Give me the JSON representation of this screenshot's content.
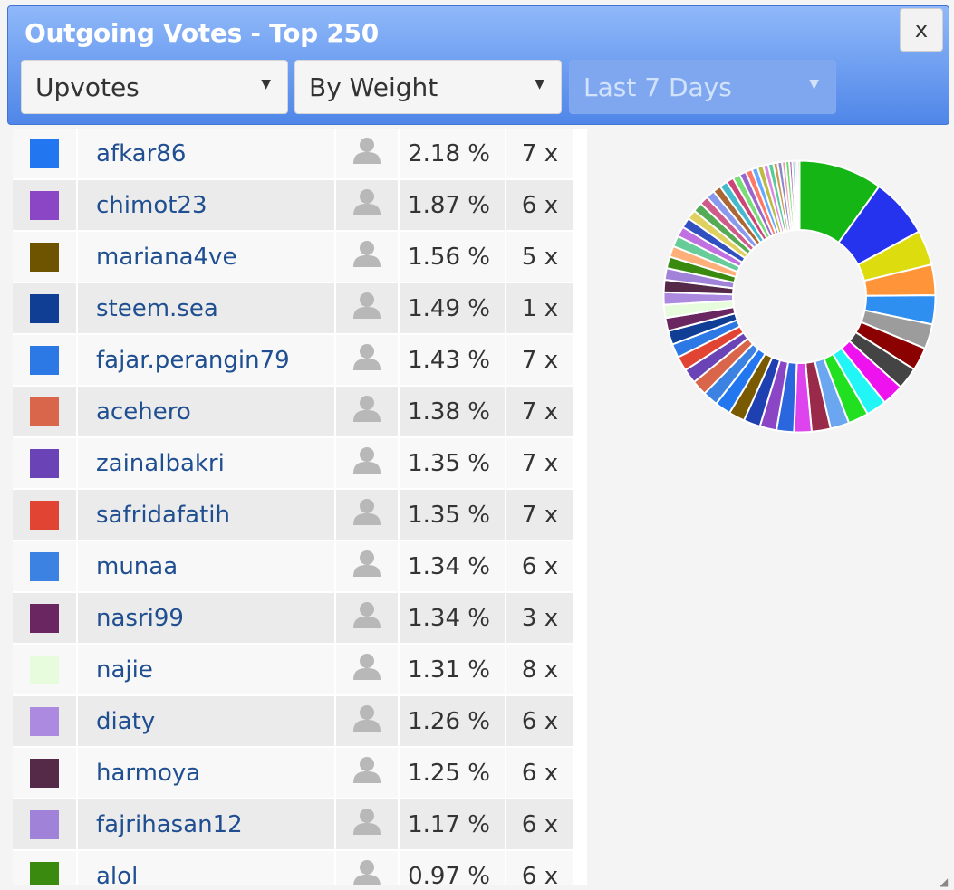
{
  "window": {
    "title": "Outgoing Votes - Top 250",
    "close_label": "x"
  },
  "filters": {
    "type": "Upvotes",
    "sort": "By Weight",
    "period": "Last 7 Days"
  },
  "rows": [
    {
      "name": "afkar86",
      "pct": "2.18 %",
      "count": "7 x",
      "color": "#2277f0"
    },
    {
      "name": "chimot23",
      "pct": "1.87 %",
      "count": "6 x",
      "color": "#8a46c4"
    },
    {
      "name": "mariana4ve",
      "pct": "1.56 %",
      "count": "5 x",
      "color": "#6e5400"
    },
    {
      "name": "steem.sea",
      "pct": "1.49 %",
      "count": "1 x",
      "color": "#103e94"
    },
    {
      "name": "fajar.perangin79",
      "pct": "1.43 %",
      "count": "7 x",
      "color": "#2c78e4"
    },
    {
      "name": "acehero",
      "pct": "1.38 %",
      "count": "7 x",
      "color": "#d9664a"
    },
    {
      "name": "zainalbakri",
      "pct": "1.35 %",
      "count": "7 x",
      "color": "#6a44b6"
    },
    {
      "name": "safridafatih",
      "pct": "1.35 %",
      "count": "7 x",
      "color": "#e24434"
    },
    {
      "name": "munaa",
      "pct": "1.34 %",
      "count": "6 x",
      "color": "#3c82e2"
    },
    {
      "name": "nasri99",
      "pct": "1.34 %",
      "count": "3 x",
      "color": "#6a2660"
    },
    {
      "name": "najie",
      "pct": "1.31 %",
      "count": "8 x",
      "color": "#e6fcdc"
    },
    {
      "name": "diaty",
      "pct": "1.26 %",
      "count": "6 x",
      "color": "#ab8ae0"
    },
    {
      "name": "harmoya",
      "pct": "1.25 %",
      "count": "6 x",
      "color": "#552a48"
    },
    {
      "name": "fajrihasan12",
      "pct": "1.17 %",
      "count": "6 x",
      "color": "#a082d8"
    },
    {
      "name": "alol",
      "pct": "0.97 %",
      "count": "6 x",
      "color": "#3a8a10"
    }
  ],
  "chart_data": {
    "type": "pie",
    "title": "",
    "values": [
      11.5,
      8.2,
      4.8,
      4.2,
      4.0,
      3.4,
      3.2,
      3.0,
      3.0,
      2.8,
      2.8,
      2.6,
      2.6,
      2.4,
      2.4,
      2.3,
      2.3,
      2.2,
      2.2,
      2.1,
      2.1,
      2.0,
      2.0,
      1.9,
      1.9,
      1.8,
      1.8,
      1.7,
      1.7,
      1.6,
      1.6,
      1.5,
      1.5,
      1.4,
      1.4,
      1.3,
      1.3,
      1.2,
      1.2,
      1.1,
      1.1,
      1.0,
      1.0,
      0.9,
      0.9,
      0.8,
      0.8,
      0.7,
      0.7,
      0.6,
      0.6,
      0.5,
      0.5,
      0.4,
      0.4,
      0.3,
      0.3
    ],
    "colors": [
      "#16b516",
      "#2532ee",
      "#dcdc0f",
      "#ff9438",
      "#2f8ff0",
      "#9c9c9c",
      "#8b0000",
      "#444444",
      "#ee12ee",
      "#22f5f5",
      "#20e020",
      "#6aa7f0",
      "#9a2a4a",
      "#dd44ee",
      "#2a66dd",
      "#8a46c4",
      "#1f40b0",
      "#7a5a00",
      "#2277f0",
      "#3c82e2",
      "#d9664a",
      "#6a44b6",
      "#e24434",
      "#2c78e4",
      "#103e94",
      "#6a2660",
      "#e6fcdc",
      "#ab8ae0",
      "#552a48",
      "#a082d8",
      "#3a8a10",
      "#ffb07a",
      "#66cc99",
      "#c070e0",
      "#3050c0",
      "#e0d060",
      "#55aa55",
      "#d05a8a",
      "#8899ee",
      "#aa6633",
      "#44bbcc",
      "#cc4477",
      "#77dd77",
      "#9966cc",
      "#ff7766",
      "#66aaff",
      "#bbbb44",
      "#dd88dd",
      "#55cc99",
      "#cc9955",
      "#8888cc",
      "#ee99aa",
      "#66dd66",
      "#aa55aa",
      "#99ccee",
      "#ccaa77",
      "#bbddbb"
    ],
    "inner_ratio": 0.49,
    "legend": "none"
  }
}
